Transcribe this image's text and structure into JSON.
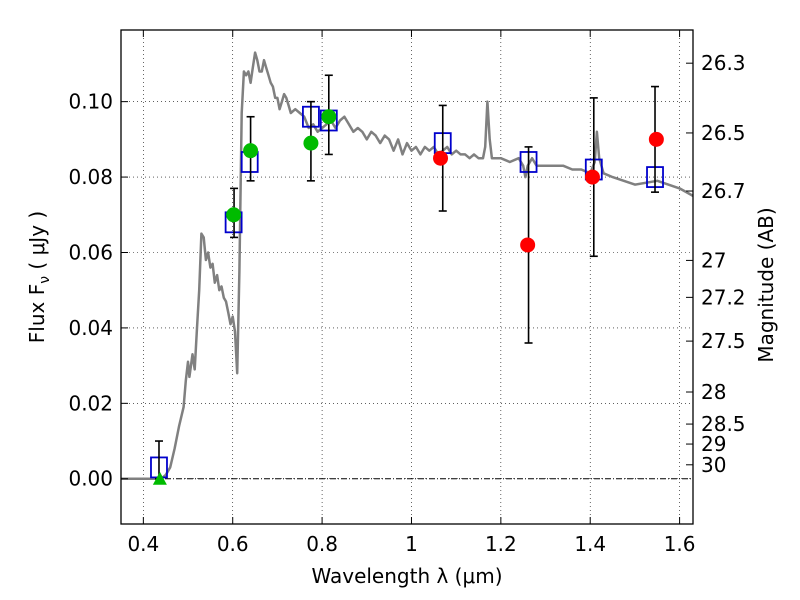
{
  "chart_data": {
    "type": "scatter",
    "xlabel": "Wavelength  λ (μm)",
    "ylabel": "Flux  F",
    "ylabel_sub": "ν",
    "ylabel_unit": " ( μJy )",
    "y2label": "Magnitude (AB)",
    "xlim": [
      0.35,
      1.63
    ],
    "ylim": [
      -0.012,
      0.119
    ],
    "grid": true,
    "x_ticks": [
      0.4,
      0.6,
      0.8,
      1.0,
      1.2,
      1.4,
      1.6
    ],
    "x_tick_labels": [
      "0.4",
      "0.6",
      "0.8",
      "1",
      "1.2",
      "1.4",
      "1.6"
    ],
    "y_ticks": [
      0.0,
      0.02,
      0.04,
      0.06,
      0.08,
      0.1
    ],
    "y_tick_labels": [
      "0.00",
      "0.02",
      "0.04",
      "0.06",
      "0.08",
      "0.10"
    ],
    "y2_ticks": [
      {
        "label": "26.3",
        "flux": 0.1102
      },
      {
        "label": "26.5",
        "flux": 0.0917
      },
      {
        "label": "26.7",
        "flux": 0.0763
      },
      {
        "label": "27",
        "flux": 0.0579
      },
      {
        "label": "27.2",
        "flux": 0.0481
      },
      {
        "label": "27.5",
        "flux": 0.0365
      },
      {
        "label": "28",
        "flux": 0.023
      },
      {
        "label": "28.5",
        "flux": 0.0145
      },
      {
        "label": "29",
        "flux": 0.0092
      },
      {
        "label": "30",
        "flux": 0.0037
      }
    ],
    "colors": {
      "model": "#808080",
      "model_points": "#0000cc",
      "green_points": "#00bb00",
      "red_points": "#ff0000",
      "error_bars": "#000000",
      "zero_line": "#000000"
    },
    "series": [
      {
        "marker": "line",
        "points": [
          [
            0.35,
            0.0
          ],
          [
            0.44,
            0.0
          ],
          [
            0.45,
            0.001
          ],
          [
            0.46,
            0.003
          ],
          [
            0.47,
            0.008
          ],
          [
            0.48,
            0.014
          ],
          [
            0.49,
            0.019
          ],
          [
            0.495,
            0.026
          ],
          [
            0.5,
            0.031
          ],
          [
            0.503,
            0.027
          ],
          [
            0.51,
            0.033
          ],
          [
            0.515,
            0.029
          ],
          [
            0.52,
            0.04
          ],
          [
            0.525,
            0.05
          ],
          [
            0.53,
            0.065
          ],
          [
            0.535,
            0.064
          ],
          [
            0.54,
            0.058
          ],
          [
            0.545,
            0.06
          ],
          [
            0.55,
            0.056
          ],
          [
            0.555,
            0.057
          ],
          [
            0.56,
            0.052
          ],
          [
            0.565,
            0.054
          ],
          [
            0.57,
            0.05
          ],
          [
            0.575,
            0.051
          ],
          [
            0.58,
            0.048
          ],
          [
            0.585,
            0.047
          ],
          [
            0.59,
            0.044
          ],
          [
            0.595,
            0.041
          ],
          [
            0.6,
            0.043
          ],
          [
            0.605,
            0.039
          ],
          [
            0.61,
            0.028
          ],
          [
            0.615,
            0.055
          ],
          [
            0.62,
            0.097
          ],
          [
            0.625,
            0.108
          ],
          [
            0.63,
            0.107
          ],
          [
            0.635,
            0.108
          ],
          [
            0.64,
            0.105
          ],
          [
            0.645,
            0.109
          ],
          [
            0.65,
            0.113
          ],
          [
            0.655,
            0.111
          ],
          [
            0.66,
            0.108
          ],
          [
            0.665,
            0.108
          ],
          [
            0.67,
            0.111
          ],
          [
            0.675,
            0.109
          ],
          [
            0.68,
            0.107
          ],
          [
            0.685,
            0.105
          ],
          [
            0.69,
            0.104
          ],
          [
            0.695,
            0.101
          ],
          [
            0.7,
            0.101
          ],
          [
            0.705,
            0.098
          ],
          [
            0.71,
            0.1
          ],
          [
            0.715,
            0.102
          ],
          [
            0.72,
            0.101
          ],
          [
            0.725,
            0.099
          ],
          [
            0.73,
            0.097
          ],
          [
            0.74,
            0.098
          ],
          [
            0.75,
            0.097
          ],
          [
            0.76,
            0.096
          ],
          [
            0.77,
            0.093
          ],
          [
            0.78,
            0.094
          ],
          [
            0.79,
            0.092
          ],
          [
            0.8,
            0.093
          ],
          [
            0.81,
            0.094
          ],
          [
            0.82,
            0.095
          ],
          [
            0.83,
            0.093
          ],
          [
            0.84,
            0.095
          ],
          [
            0.85,
            0.096
          ],
          [
            0.86,
            0.094
          ],
          [
            0.87,
            0.092
          ],
          [
            0.88,
            0.093
          ],
          [
            0.89,
            0.092
          ],
          [
            0.9,
            0.09
          ],
          [
            0.91,
            0.092
          ],
          [
            0.92,
            0.091
          ],
          [
            0.93,
            0.089
          ],
          [
            0.94,
            0.091
          ],
          [
            0.95,
            0.09
          ],
          [
            0.96,
            0.087
          ],
          [
            0.97,
            0.09
          ],
          [
            0.98,
            0.086
          ],
          [
            0.99,
            0.089
          ],
          [
            1.0,
            0.087
          ],
          [
            1.01,
            0.088
          ],
          [
            1.02,
            0.086
          ],
          [
            1.03,
            0.088
          ],
          [
            1.04,
            0.087
          ],
          [
            1.05,
            0.088
          ],
          [
            1.06,
            0.086
          ],
          [
            1.07,
            0.087
          ],
          [
            1.08,
            0.088
          ],
          [
            1.09,
            0.086
          ],
          [
            1.1,
            0.087
          ],
          [
            1.11,
            0.086
          ],
          [
            1.12,
            0.086
          ],
          [
            1.13,
            0.085
          ],
          [
            1.14,
            0.086
          ],
          [
            1.15,
            0.085
          ],
          [
            1.16,
            0.085
          ],
          [
            1.165,
            0.088
          ],
          [
            1.17,
            0.1
          ],
          [
            1.175,
            0.09
          ],
          [
            1.18,
            0.085
          ],
          [
            1.2,
            0.085
          ],
          [
            1.22,
            0.084
          ],
          [
            1.24,
            0.085
          ],
          [
            1.25,
            0.083
          ],
          [
            1.255,
            0.08
          ],
          [
            1.26,
            0.083
          ],
          [
            1.27,
            0.085
          ],
          [
            1.28,
            0.083
          ],
          [
            1.3,
            0.083
          ],
          [
            1.32,
            0.083
          ],
          [
            1.34,
            0.083
          ],
          [
            1.36,
            0.082
          ],
          [
            1.38,
            0.082
          ],
          [
            1.4,
            0.081
          ],
          [
            1.41,
            0.084
          ],
          [
            1.415,
            0.092
          ],
          [
            1.42,
            0.085
          ],
          [
            1.43,
            0.081
          ],
          [
            1.45,
            0.08
          ],
          [
            1.5,
            0.078
          ],
          [
            1.55,
            0.079
          ],
          [
            1.6,
            0.077
          ],
          [
            1.63,
            0.075
          ]
        ]
      },
      {
        "marker": "open-square",
        "points": [
          [
            0.435,
            0.003
          ],
          [
            0.602,
            0.068
          ],
          [
            0.638,
            0.084
          ],
          [
            0.775,
            0.096
          ],
          [
            0.815,
            0.095
          ],
          [
            1.07,
            0.089
          ],
          [
            1.262,
            0.084
          ],
          [
            1.408,
            0.082
          ],
          [
            1.545,
            0.08
          ]
        ]
      },
      {
        "marker": "errorbar",
        "points": [
          {
            "x": 0.435,
            "low": 0.0,
            "high": 0.01
          },
          {
            "x": 0.603,
            "low": 0.064,
            "high": 0.077
          },
          {
            "x": 0.64,
            "low": 0.079,
            "high": 0.096
          },
          {
            "x": 0.775,
            "low": 0.079,
            "high": 0.1
          },
          {
            "x": 0.815,
            "low": 0.086,
            "high": 0.107
          },
          {
            "x": 1.07,
            "low": 0.071,
            "high": 0.099
          },
          {
            "x": 1.262,
            "low": 0.036,
            "high": 0.088
          },
          {
            "x": 1.408,
            "low": 0.059,
            "high": 0.101
          },
          {
            "x": 1.545,
            "low": 0.076,
            "high": 0.104
          }
        ]
      },
      {
        "marker": "filled-circle",
        "color_key": "green_points",
        "points": [
          [
            0.602,
            0.07
          ],
          [
            0.64,
            0.087
          ],
          [
            0.775,
            0.089
          ],
          [
            0.815,
            0.096
          ]
        ]
      },
      {
        "marker": "filled-circle",
        "color_key": "red_points",
        "points": [
          [
            1.065,
            0.085
          ],
          [
            1.26,
            0.062
          ],
          [
            1.405,
            0.08
          ],
          [
            1.548,
            0.09
          ]
        ]
      },
      {
        "marker": "triangle",
        "color_key": "green_points",
        "points": [
          [
            0.437,
            0.0
          ]
        ]
      }
    ]
  }
}
